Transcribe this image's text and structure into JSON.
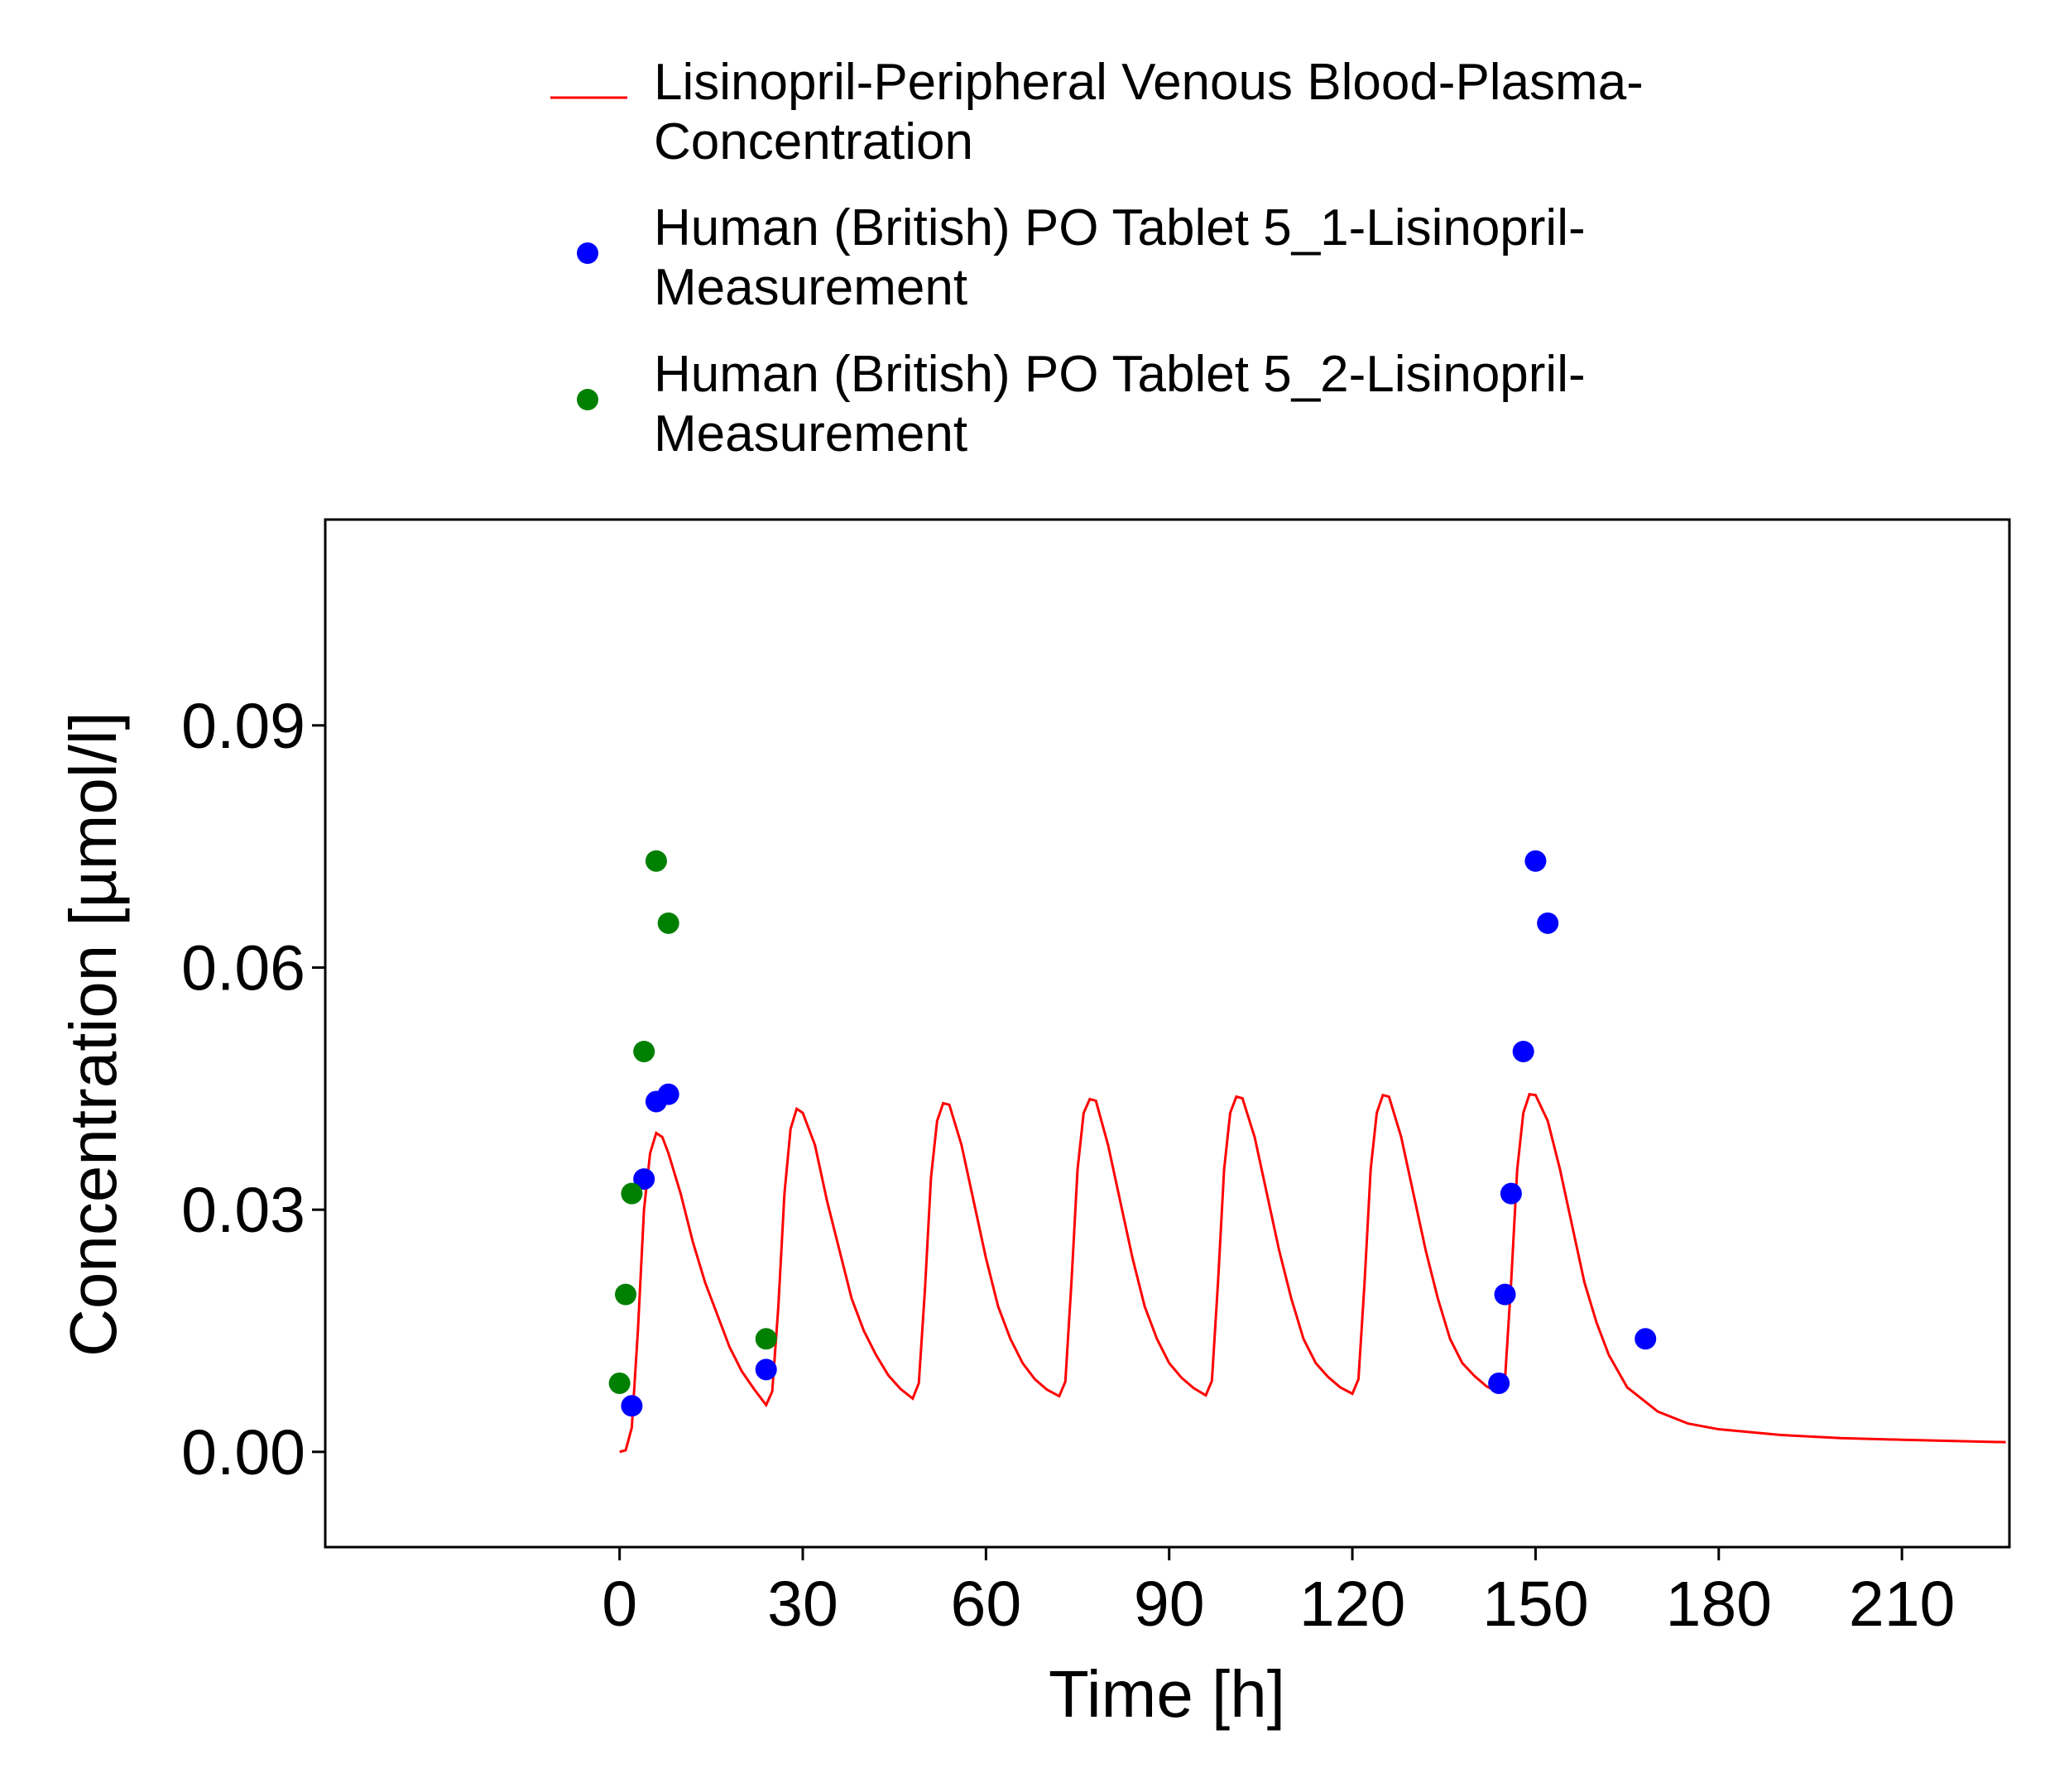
{
  "chart_data": {
    "type": "line",
    "x_label": "Time [h]",
    "y_label": "Concentration [µmol/l]",
    "xlim": [
      -48.2,
      227.6
    ],
    "ylim": [
      -0.0118,
      0.1155
    ],
    "xticks": [
      0,
      30,
      60,
      90,
      120,
      150,
      180,
      210
    ],
    "yticks": [
      {
        "value": 0,
        "label": "0.00"
      },
      0.03,
      0.06,
      0.09
    ],
    "series": [
      {
        "name": "Lisinopril-Peripheral Venous Blood-Plasma-Concentration",
        "type": "line",
        "color": "#ff0000",
        "x": [
          0,
          1,
          2,
          3,
          4,
          5,
          6,
          7,
          8,
          10,
          12,
          14,
          16,
          18,
          20,
          22,
          24,
          25,
          26,
          27,
          28,
          29,
          30,
          32,
          34,
          36,
          38,
          40,
          42,
          44,
          46,
          48,
          49,
          50,
          51,
          52,
          53,
          54,
          56,
          58,
          60,
          62,
          64,
          66,
          68,
          70,
          72,
          73,
          74,
          75,
          76,
          77,
          78,
          80,
          82,
          84,
          86,
          88,
          90,
          92,
          94,
          96,
          97,
          98,
          99,
          100,
          101,
          102,
          104,
          106,
          108,
          110,
          112,
          114,
          116,
          118,
          120,
          121,
          122,
          123,
          124,
          125,
          126,
          128,
          130,
          132,
          134,
          136,
          138,
          140,
          142,
          144,
          145,
          146,
          147,
          148,
          149,
          150,
          152,
          154,
          156,
          158,
          160,
          162,
          165,
          170,
          175,
          180,
          190,
          200,
          210,
          227
        ],
        "values": [
          0,
          0.0002,
          0.003,
          0.015,
          0.03,
          0.037,
          0.0395,
          0.039,
          0.037,
          0.032,
          0.026,
          0.021,
          0.017,
          0.013,
          0.01,
          0.0078,
          0.0058,
          0.0075,
          0.018,
          0.032,
          0.04,
          0.0425,
          0.042,
          0.038,
          0.031,
          0.025,
          0.019,
          0.015,
          0.012,
          0.0095,
          0.0078,
          0.0066,
          0.0085,
          0.02,
          0.034,
          0.041,
          0.0432,
          0.043,
          0.038,
          0.031,
          0.024,
          0.018,
          0.014,
          0.011,
          0.009,
          0.0077,
          0.0069,
          0.0087,
          0.021,
          0.035,
          0.042,
          0.0437,
          0.0435,
          0.038,
          0.031,
          0.024,
          0.018,
          0.014,
          0.011,
          0.0092,
          0.0079,
          0.007,
          0.0088,
          0.021,
          0.035,
          0.042,
          0.044,
          0.0438,
          0.039,
          0.032,
          0.025,
          0.019,
          0.014,
          0.011,
          0.0093,
          0.008,
          0.0072,
          0.009,
          0.021,
          0.035,
          0.042,
          0.0442,
          0.044,
          0.039,
          0.032,
          0.025,
          0.019,
          0.014,
          0.011,
          0.0094,
          0.0081,
          0.0074,
          0.009,
          0.021,
          0.035,
          0.042,
          0.0443,
          0.0442,
          0.041,
          0.035,
          0.028,
          0.021,
          0.016,
          0.012,
          0.008,
          0.005,
          0.0035,
          0.0028,
          0.0021,
          0.0017,
          0.0015,
          0.0012
        ]
      },
      {
        "name": "Human (British) PO Tablet 5_1-Lisinopril-Measurement",
        "type": "scatter",
        "color": "#0000ff",
        "x": [
          2,
          4,
          6,
          8,
          24,
          144,
          145,
          146,
          148,
          150,
          152,
          168
        ],
        "values": [
          0.0057,
          0.0338,
          0.0434,
          0.0443,
          0.0102,
          0.0085,
          0.0195,
          0.032,
          0.0496,
          0.0732,
          0.0655,
          0.014
        ]
      },
      {
        "name": "Human (British) PO Tablet 5_2-Lisinopril-Measurement",
        "type": "scatter",
        "color": "#008000",
        "x": [
          0,
          1,
          2,
          4,
          6,
          8,
          24
        ],
        "values": [
          0.0085,
          0.0195,
          0.032,
          0.0496,
          0.0732,
          0.0655,
          0.014
        ]
      }
    ]
  }
}
